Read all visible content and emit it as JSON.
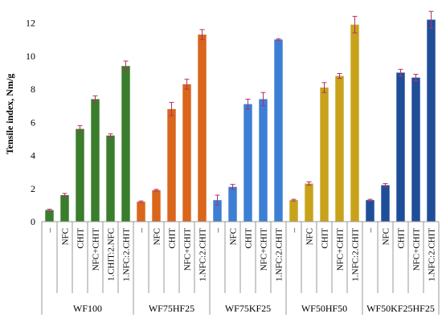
{
  "chart_data": {
    "type": "bar",
    "xlabel": "",
    "ylabel": "Tensile index, Nm/g",
    "ylim": [
      0,
      13
    ],
    "yticks": [
      0,
      2,
      4,
      6,
      8,
      10,
      12
    ],
    "grid": false,
    "legend": "none",
    "groups": [
      {
        "name": "WF100",
        "color": "#3a7d2c",
        "categories": [
          "–",
          "NFC",
          "CHIT",
          "NFC+CHIT",
          "1.CHIT:2.NFC",
          "1.NFC:2.CHIT"
        ],
        "values": [
          0.7,
          1.6,
          5.6,
          7.4,
          5.2,
          9.4
        ],
        "errors": [
          0.05,
          0.1,
          0.2,
          0.2,
          0.1,
          0.3
        ]
      },
      {
        "name": "WF75HF25",
        "color": "#d9661c",
        "categories": [
          "–",
          "NFC",
          "CHIT",
          "NFC+CHIT",
          "1.NFC:2.CHIT"
        ],
        "values": [
          1.2,
          1.9,
          6.8,
          8.3,
          11.3
        ],
        "errors": [
          0.05,
          0.05,
          0.4,
          0.3,
          0.3
        ]
      },
      {
        "name": "WF75KF25",
        "color": "#3c7fd4",
        "categories": [
          "–",
          "NFC",
          "CHIT",
          "NFC+CHIT",
          "1.NFC:2.CHIT"
        ],
        "values": [
          1.3,
          2.1,
          7.1,
          7.4,
          11.0
        ],
        "errors": [
          0.3,
          0.15,
          0.3,
          0.4,
          0.05
        ]
      },
      {
        "name": "WF50HF50",
        "color": "#c9a21c",
        "categories": [
          "–",
          "NFC",
          "CHIT",
          "NFC+CHIT",
          "1.NFC:2.CHIT"
        ],
        "values": [
          1.3,
          2.3,
          8.1,
          8.8,
          11.9
        ],
        "errors": [
          0.05,
          0.1,
          0.3,
          0.15,
          0.5
        ]
      },
      {
        "name": "WF50KF25HF25",
        "color": "#1f4e99",
        "categories": [
          "–",
          "NFC",
          "CHIT",
          "NFC+CHIT",
          "1.NFC:2.CHIT"
        ],
        "values": [
          1.3,
          2.2,
          9.0,
          8.7,
          12.2
        ],
        "errors": [
          0.05,
          0.1,
          0.2,
          0.2,
          0.5
        ]
      }
    ]
  }
}
